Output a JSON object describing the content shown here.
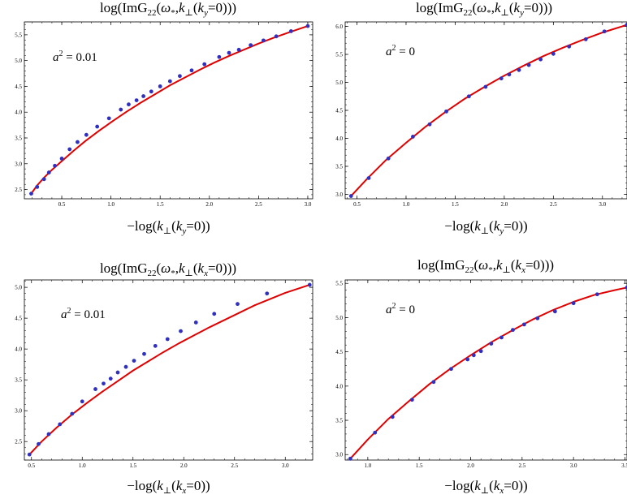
{
  "chart_data": [
    {
      "type": "line",
      "title": "log(ImG22(ω*,k⊥(ky=0)))",
      "xlabel": "−log(k⊥(ky=0))",
      "ylabel": "",
      "annotation": "a² = 0.01",
      "xlim": [
        0.12,
        3.05
      ],
      "ylim": [
        2.32,
        5.75
      ],
      "xticks": [
        0.5,
        1.0,
        1.5,
        2.0,
        2.5,
        3.0
      ],
      "xtick_labels": [
        "0.5",
        "1.0",
        "1.5",
        "2.0",
        "2.5",
        "3.0"
      ],
      "yticks": [
        2.5,
        3.0,
        3.5,
        4.0,
        4.5,
        5.0,
        5.5
      ],
      "ytick_labels": [
        "2.5",
        "3.0",
        "3.5",
        "4.0",
        "4.5",
        "5.0",
        "5.5"
      ],
      "series": [
        {
          "kind": "line",
          "color": "#e00000",
          "x": [
            0.19,
            0.25,
            0.32,
            0.4,
            0.5,
            0.62,
            0.74,
            0.88,
            1.02,
            1.16,
            1.3,
            1.45,
            1.6,
            1.75,
            1.9,
            2.05,
            2.2,
            2.35,
            2.5,
            2.65,
            2.8,
            3.0
          ],
          "y": [
            2.42,
            2.58,
            2.73,
            2.88,
            3.05,
            3.25,
            3.44,
            3.64,
            3.83,
            4.01,
            4.18,
            4.35,
            4.52,
            4.67,
            4.82,
            4.96,
            5.09,
            5.21,
            5.33,
            5.44,
            5.54,
            5.67
          ]
        },
        {
          "kind": "points",
          "color": "#3030c0",
          "x": [
            0.19,
            0.25,
            0.32,
            0.37,
            0.43,
            0.5,
            0.58,
            0.66,
            0.75,
            0.86,
            0.98,
            1.1,
            1.18,
            1.26,
            1.33,
            1.41,
            1.5,
            1.6,
            1.7,
            1.82,
            1.95,
            2.1,
            2.2,
            2.3,
            2.42,
            2.55,
            2.68,
            2.83,
            3.0
          ],
          "y": [
            2.42,
            2.55,
            2.7,
            2.83,
            2.96,
            3.1,
            3.28,
            3.42,
            3.56,
            3.72,
            3.88,
            4.05,
            4.15,
            4.23,
            4.31,
            4.4,
            4.5,
            4.6,
            4.7,
            4.81,
            4.93,
            5.07,
            5.15,
            5.21,
            5.3,
            5.39,
            5.47,
            5.57,
            5.67
          ]
        }
      ]
    },
    {
      "type": "line",
      "title": "log(ImG22(ω*,k⊥(ky=0)))",
      "xlabel": "−log(k⊥(ky=0))",
      "ylabel": "",
      "annotation": "a² = 0",
      "xlim": [
        0.38,
        3.25
      ],
      "ylim": [
        2.92,
        6.08
      ],
      "xticks": [
        0.5,
        1.0,
        1.5,
        2.0,
        2.5,
        3.0
      ],
      "xtick_labels": [
        "0.5",
        "1.0",
        "1.5",
        "2.0",
        "2.5",
        "3.0"
      ],
      "yticks": [
        3.0,
        3.5,
        4.0,
        4.5,
        5.0,
        5.5,
        6.0
      ],
      "ytick_labels": [
        "3.0",
        "3.5",
        "4.0",
        "4.5",
        "5.0",
        "5.5",
        "6.0"
      ],
      "series": [
        {
          "kind": "line",
          "color": "#e00000",
          "x": [
            0.44,
            0.6,
            0.8,
            1.0,
            1.2,
            1.4,
            1.6,
            1.8,
            2.0,
            2.2,
            2.4,
            2.6,
            2.8,
            3.0,
            3.2,
            3.25
          ],
          "y": [
            2.97,
            3.27,
            3.62,
            3.92,
            4.21,
            4.47,
            4.71,
            4.92,
            5.12,
            5.3,
            5.47,
            5.62,
            5.76,
            5.89,
            6.0,
            6.03
          ]
        },
        {
          "kind": "points",
          "color": "#3030c0",
          "x": [
            0.44,
            0.62,
            0.82,
            1.07,
            1.24,
            1.41,
            1.64,
            1.81,
            1.97,
            2.05,
            2.15,
            2.25,
            2.37,
            2.5,
            2.66,
            2.83,
            3.02,
            3.25
          ],
          "y": [
            2.97,
            3.29,
            3.64,
            4.03,
            4.25,
            4.48,
            4.75,
            4.92,
            5.07,
            5.14,
            5.22,
            5.31,
            5.41,
            5.51,
            5.64,
            5.77,
            5.91,
            6.03
          ]
        }
      ]
    },
    {
      "type": "line",
      "title": "log(ImG22(ω*,k⊥(kx=0)))",
      "xlabel": "−log(k⊥(kx=0))",
      "ylabel": "",
      "annotation": "a² = 0.01",
      "xlim": [
        0.43,
        3.27
      ],
      "ylim": [
        2.2,
        5.12
      ],
      "xticks": [
        0.5,
        1.0,
        1.5,
        2.0,
        2.5,
        3.0
      ],
      "xtick_labels": [
        "0.5",
        "1.0",
        "1.5",
        "2.0",
        "2.5",
        "3.0"
      ],
      "yticks": [
        2.5,
        3.0,
        3.5,
        4.0,
        4.5,
        5.0
      ],
      "ytick_labels": [
        "2.5",
        "3.0",
        "3.5",
        "4.0",
        "4.5",
        "5.0"
      ],
      "series": [
        {
          "kind": "line",
          "color": "#e00000",
          "x": [
            0.48,
            0.6,
            0.75,
            0.9,
            1.05,
            1.2,
            1.35,
            1.5,
            1.65,
            1.8,
            1.95,
            2.1,
            2.25,
            2.4,
            2.55,
            2.7,
            2.85,
            3.0,
            3.24
          ],
          "y": [
            2.29,
            2.5,
            2.73,
            2.94,
            3.13,
            3.31,
            3.48,
            3.65,
            3.8,
            3.95,
            4.09,
            4.22,
            4.35,
            4.47,
            4.59,
            4.71,
            4.81,
            4.91,
            5.04
          ]
        },
        {
          "kind": "points",
          "color": "#3030c0",
          "x": [
            0.48,
            0.57,
            0.67,
            0.78,
            0.9,
            1.0,
            1.13,
            1.21,
            1.28,
            1.35,
            1.43,
            1.51,
            1.61,
            1.72,
            1.84,
            1.97,
            2.12,
            2.3,
            2.53,
            2.82,
            3.24
          ],
          "y": [
            2.29,
            2.46,
            2.62,
            2.78,
            2.95,
            3.15,
            3.35,
            3.44,
            3.52,
            3.62,
            3.71,
            3.81,
            3.92,
            4.05,
            4.16,
            4.29,
            4.43,
            4.57,
            4.73,
            4.9,
            5.04
          ]
        }
      ]
    },
    {
      "type": "line",
      "title": "log(ImG22(ω*,k⊥(kx=0)))",
      "xlabel": "−log(k⊥(kx=0))",
      "ylabel": "",
      "annotation": "a² = 0",
      "xlim": [
        0.78,
        3.52
      ],
      "ylim": [
        2.92,
        5.55
      ],
      "xticks": [
        1.0,
        1.5,
        2.0,
        2.5,
        3.0,
        3.5
      ],
      "xtick_labels": [
        "1.0",
        "1.5",
        "2.0",
        "2.5",
        "3.0",
        "3.5"
      ],
      "yticks": [
        3.0,
        3.5,
        4.0,
        4.5,
        5.0,
        5.5
      ],
      "ytick_labels": [
        "3.0",
        "3.5",
        "4.0",
        "4.5",
        "5.0",
        "5.5"
      ],
      "series": [
        {
          "kind": "line",
          "color": "#e00000",
          "x": [
            0.83,
            1.0,
            1.2,
            1.4,
            1.6,
            1.8,
            2.0,
            2.2,
            2.4,
            2.6,
            2.8,
            3.0,
            3.2,
            3.4,
            3.52
          ],
          "y": [
            2.94,
            3.22,
            3.52,
            3.78,
            4.03,
            4.25,
            4.45,
            4.64,
            4.81,
            4.97,
            5.11,
            5.23,
            5.33,
            5.4,
            5.44
          ]
        },
        {
          "kind": "points",
          "color": "#3030c0",
          "x": [
            0.83,
            1.07,
            1.24,
            1.43,
            1.64,
            1.81,
            1.97,
            2.03,
            2.1,
            2.2,
            2.3,
            2.41,
            2.52,
            2.65,
            2.82,
            3.0,
            3.23,
            3.52
          ],
          "y": [
            2.94,
            3.32,
            3.55,
            3.8,
            4.06,
            4.25,
            4.39,
            4.45,
            4.51,
            4.62,
            4.71,
            4.82,
            4.9,
            4.99,
            5.09,
            5.21,
            5.34,
            5.44
          ]
        }
      ]
    }
  ]
}
